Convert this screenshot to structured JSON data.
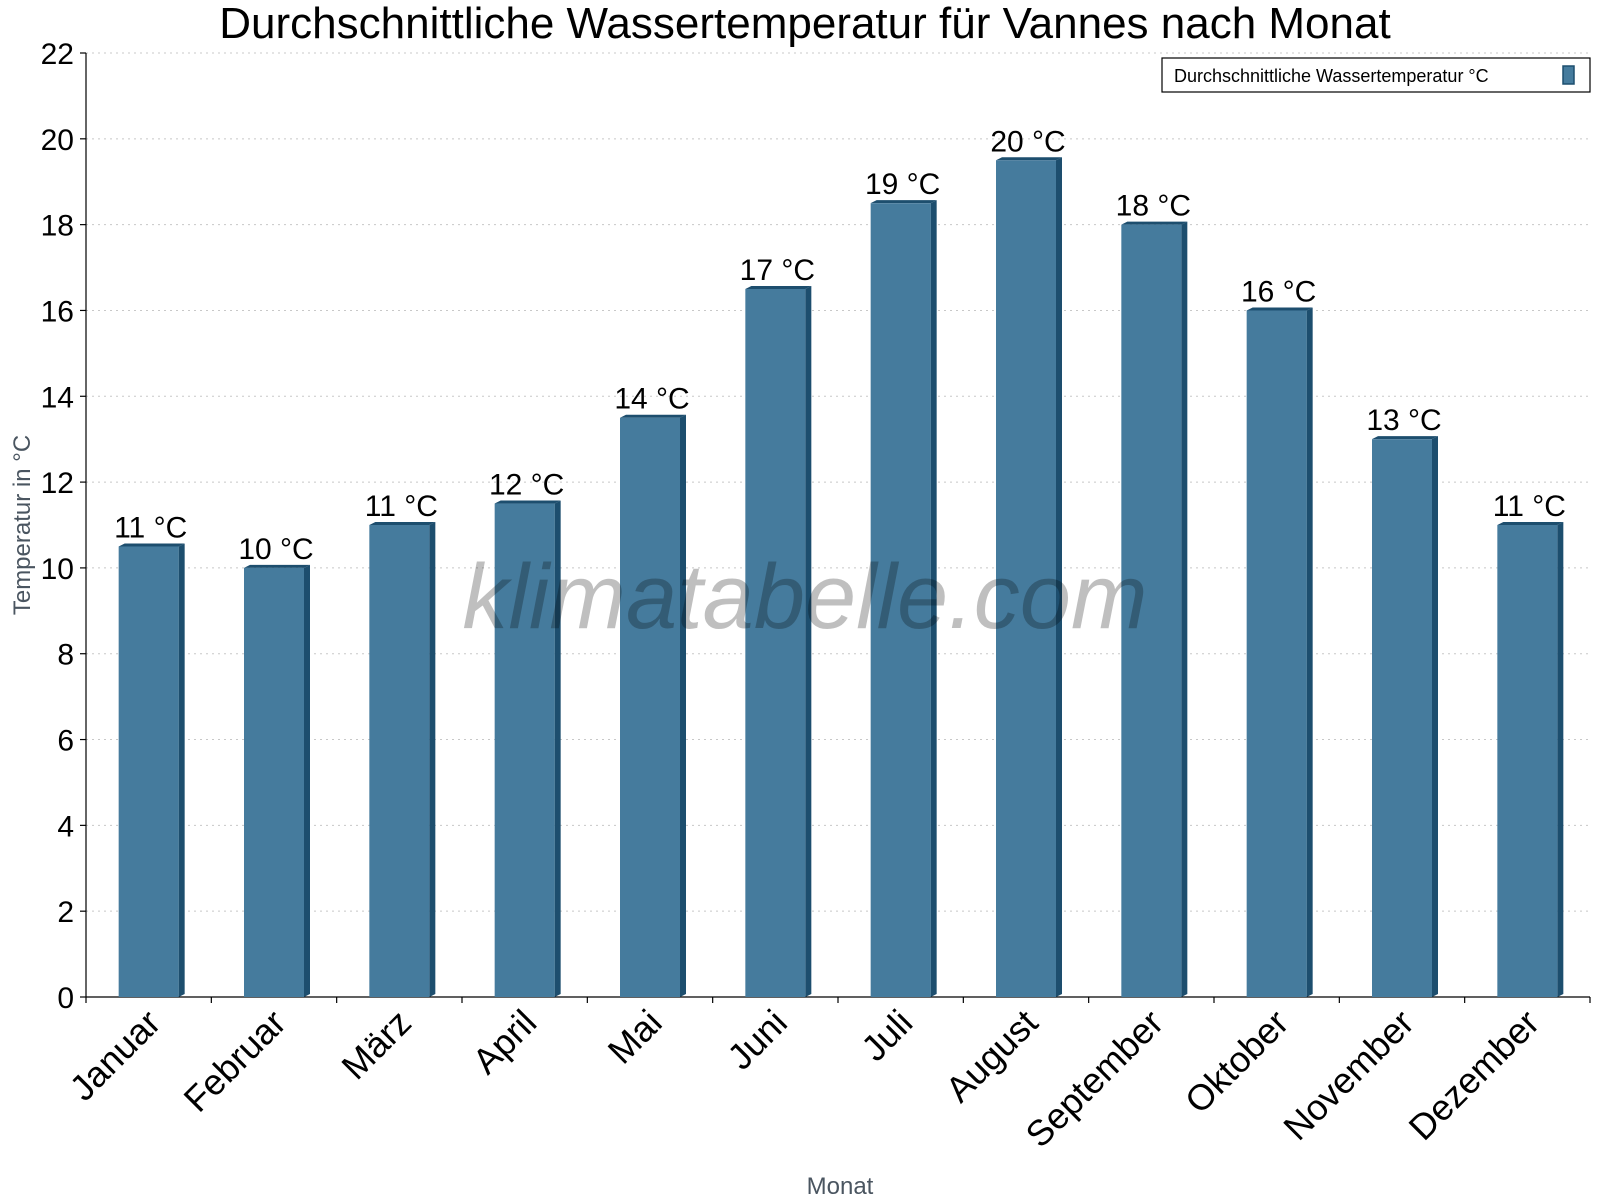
{
  "colors": {
    "bar_front": "#457b9d",
    "bar_side": "#1d4e6e",
    "bar_top": "#1d4e6e",
    "grid": "#c8c8c8",
    "axis": "#000000"
  },
  "watermark": "klimatabelle.com",
  "legend": {
    "label": "Durchschnittliche Wassertemperatur °C"
  },
  "chart_data": {
    "type": "bar",
    "title": "Durchschnittliche Wassertemperatur für Vannes nach Monat",
    "xlabel": "Monat",
    "ylabel": "Temperatur in °C",
    "ylim": [
      0,
      22
    ],
    "yticks": [
      0,
      2,
      4,
      6,
      8,
      10,
      12,
      14,
      16,
      18,
      20,
      22
    ],
    "grid": true,
    "legend_position": "top-right",
    "categories": [
      "Januar",
      "Februar",
      "März",
      "April",
      "Mai",
      "Juni",
      "Juli",
      "August",
      "September",
      "Oktober",
      "November",
      "Dezember"
    ],
    "series": [
      {
        "name": "Durchschnittliche Wassertemperatur °C",
        "values": [
          10.5,
          10,
          11,
          11.5,
          13.5,
          16.5,
          18.5,
          19.5,
          18,
          16,
          13,
          11
        ],
        "labels": [
          "11 °C",
          "10 °C",
          "11 °C",
          "12 °C",
          "14 °C",
          "17 °C",
          "19 °C",
          "20 °C",
          "18 °C",
          "16 °C",
          "13 °C",
          "11 °C"
        ]
      }
    ]
  }
}
